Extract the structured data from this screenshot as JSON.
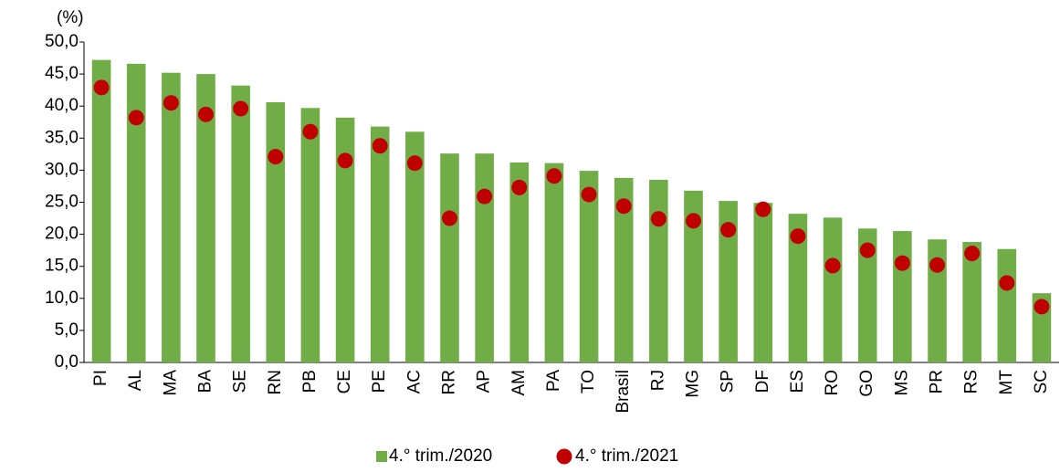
{
  "chart_data": {
    "type": "bar",
    "y_label": "(%)",
    "categories": [
      "PI",
      "AL",
      "MA",
      "BA",
      "SE",
      "RN",
      "PB",
      "CE",
      "PE",
      "AC",
      "RR",
      "AP",
      "AM",
      "PA",
      "TO",
      "Brasil",
      "RJ",
      "MG",
      "SP",
      "DF",
      "ES",
      "RO",
      "GO",
      "MS",
      "PR",
      "RS",
      "MT",
      "SC"
    ],
    "series": [
      {
        "name": "4.° trim./2020",
        "type": "bar",
        "color": "#70ad47",
        "values": [
          47.2,
          46.6,
          45.2,
          45.0,
          43.2,
          40.6,
          39.7,
          38.2,
          36.8,
          36.0,
          32.6,
          32.6,
          31.2,
          31.1,
          29.9,
          28.8,
          28.5,
          26.8,
          25.2,
          24.9,
          23.2,
          22.6,
          20.9,
          20.5,
          19.2,
          18.8,
          17.7,
          10.8
        ]
      },
      {
        "name": "4.° trim./2021",
        "type": "scatter",
        "color": "#c00000",
        "values": [
          42.9,
          38.2,
          40.5,
          38.7,
          39.6,
          32.1,
          36.0,
          31.5,
          33.8,
          31.1,
          22.5,
          25.9,
          27.3,
          29.1,
          26.2,
          24.4,
          22.4,
          22.1,
          20.7,
          23.9,
          19.7,
          15.1,
          17.5,
          15.5,
          15.2,
          17.0,
          12.4,
          8.7
        ]
      }
    ],
    "ylim": [
      0,
      50
    ],
    "yticks": [
      {
        "value": 0,
        "label": "0,0"
      },
      {
        "value": 5,
        "label": "5,0"
      },
      {
        "value": 10,
        "label": "10,0"
      },
      {
        "value": 15,
        "label": "15,0"
      },
      {
        "value": 20,
        "label": "20,0"
      },
      {
        "value": 25,
        "label": "25,0"
      },
      {
        "value": 30,
        "label": "30,0"
      },
      {
        "value": 35,
        "label": "35,0"
      },
      {
        "value": 40,
        "label": "40,0"
      },
      {
        "value": 45,
        "label": "45,0"
      },
      {
        "value": 50,
        "label": "50,0"
      }
    ],
    "legend": "bottom"
  }
}
